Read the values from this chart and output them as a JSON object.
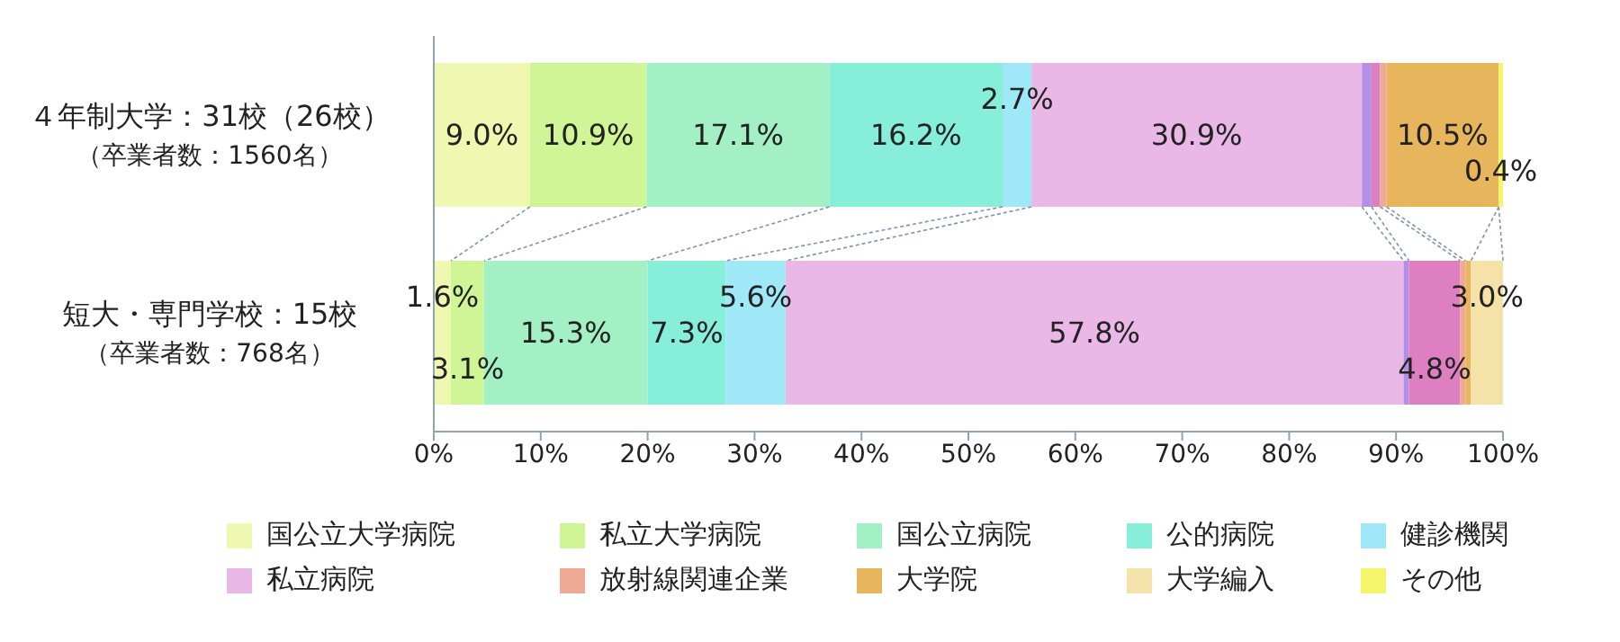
{
  "chart_data": {
    "type": "bar",
    "orientation": "horizontal",
    "stacked": true,
    "categories": [
      "４年制大学：31校（26校）（卒業者数：1560名）",
      "短大・専門学校：15校（卒業者数：768名）"
    ],
    "xlim": [
      0,
      100
    ],
    "xticks": [
      {
        "value": 0,
        "label": "0%"
      },
      {
        "value": 10,
        "label": "10%"
      },
      {
        "value": 20,
        "label": "20%"
      },
      {
        "value": 30,
        "label": "30%"
      },
      {
        "value": 40,
        "label": "40%"
      },
      {
        "value": 50,
        "label": "50%"
      },
      {
        "value": 60,
        "label": "60%"
      },
      {
        "value": 70,
        "label": "70%"
      },
      {
        "value": 80,
        "label": "80%"
      },
      {
        "value": 90,
        "label": "90%"
      },
      {
        "value": 100,
        "label": "100%"
      }
    ],
    "grid": false,
    "legend": "bottom",
    "series": [
      {
        "name": "国公立大学病院",
        "color": "#eef8b0",
        "values": [
          9.0,
          1.6
        ],
        "value_labels": [
          "9.0%",
          "1.6%"
        ]
      },
      {
        "name": "私立大学病院",
        "color": "#d0f596",
        "values": [
          10.9,
          3.1
        ],
        "value_labels": [
          "10.9%",
          "3.1%"
        ]
      },
      {
        "name": "国公立病院",
        "color": "#a2f0c4",
        "values": [
          17.1,
          15.3
        ],
        "value_labels": [
          "17.1%",
          "15.3%"
        ]
      },
      {
        "name": "公的病院",
        "color": "#86eed9",
        "values": [
          16.2,
          7.3
        ],
        "value_labels": [
          "16.2%",
          "7.3%"
        ]
      },
      {
        "name": "健診機関",
        "color": "#9ee8f8",
        "values": [
          2.7,
          5.6
        ],
        "value_labels": [
          "2.7%",
          "5.6%"
        ]
      },
      {
        "name": "私立病院",
        "color": "#e9b8e6",
        "values": [
          30.9,
          57.8
        ],
        "value_labels": [
          "30.9%",
          "57.8%"
        ]
      },
      {
        "color": "#b38fe6",
        "values": [
          0.9,
          0.5
        ]
      },
      {
        "color": "#de7fc2",
        "values": [
          0.8,
          4.8
        ],
        "value_labels": [
          null,
          "4.8%"
        ]
      },
      {
        "name": "放射線関連企業",
        "color": "#eeaa94",
        "values": [
          0.6,
          0.5
        ]
      },
      {
        "name": "大学院",
        "color": "#e6b55c",
        "values": [
          10.5,
          0.5
        ],
        "value_labels": [
          "10.5%",
          null
        ]
      },
      {
        "name": "大学編入",
        "color": "#f5e2a8",
        "values": [
          0,
          3.0
        ],
        "value_labels": [
          null,
          "3.0%"
        ]
      },
      {
        "name": "その他",
        "color": "#f5f56a",
        "values": [
          0.4,
          0
        ],
        "value_labels": [
          "0.4%",
          null
        ]
      }
    ]
  }
}
